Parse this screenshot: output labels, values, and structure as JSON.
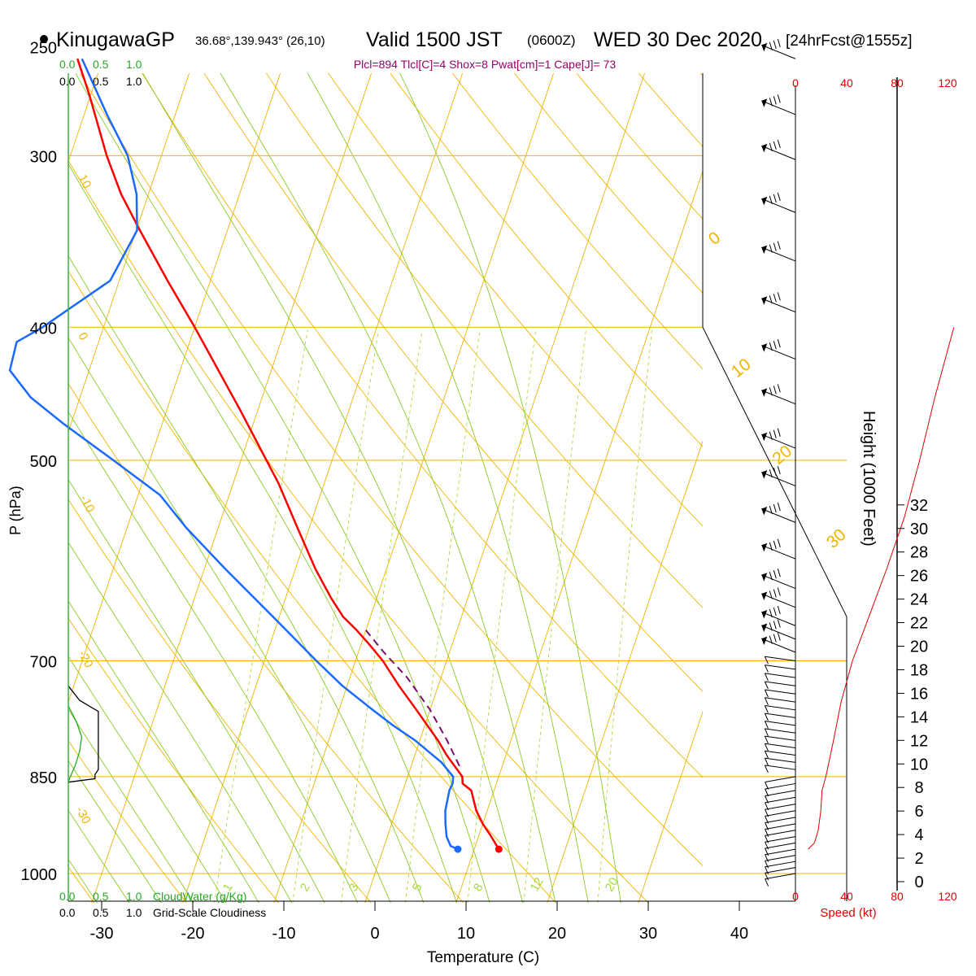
{
  "header": {
    "station_name": "KinugawaGP",
    "station_coords": "36.68°,139.943° (26,10)",
    "valid_main": "Valid 1500 JST",
    "valid_utc": "(0600Z)",
    "valid_date": "WED 30 Dec 2020",
    "forecast": "[24hrFcst@1555z]",
    "indices": "Plcl=894 Tlcl[C]=4 Shox=8 Pwat[cm]=1 Cape[J]= 73"
  },
  "chart_data": {
    "type": "line",
    "subtype": "skew-T log-P sounding",
    "xlabel": "Temperature (C)",
    "ylabel": "P (hPa)",
    "x_ticks": [
      -30,
      -20,
      -10,
      0,
      10,
      20,
      30,
      40
    ],
    "pressure_ticks": [
      250,
      300,
      400,
      500,
      700,
      850,
      1000
    ],
    "p_range": [
      250,
      1000
    ],
    "grid": true,
    "series": [
      {
        "id": "temperature",
        "color": "#ff0000",
        "points": [
          [
            960,
            12.7
          ],
          [
            940,
            11.4
          ],
          [
            920,
            10.0
          ],
          [
            900,
            8.8
          ],
          [
            870,
            7.5
          ],
          [
            860,
            6.3
          ],
          [
            850,
            6.0
          ],
          [
            820,
            3.5
          ],
          [
            800,
            2.0
          ],
          [
            760,
            -1.5
          ],
          [
            730,
            -4.3
          ],
          [
            700,
            -7.0
          ],
          [
            680,
            -9.2
          ],
          [
            665,
            -11.0
          ],
          [
            650,
            -13.0
          ],
          [
            630,
            -15.0
          ],
          [
            600,
            -17.8
          ],
          [
            560,
            -21.3
          ],
          [
            520,
            -25.0
          ],
          [
            500,
            -27.2
          ],
          [
            460,
            -31.9
          ],
          [
            430,
            -35.8
          ],
          [
            400,
            -40.0
          ],
          [
            370,
            -44.7
          ],
          [
            340,
            -49.6
          ],
          [
            320,
            -53.0
          ],
          [
            300,
            -56.0
          ],
          [
            270,
            -60.3
          ],
          [
            255,
            -62.8
          ]
        ]
      },
      {
        "id": "dewpoint",
        "color": "#1a6aff",
        "points": [
          [
            960,
            8.2
          ],
          [
            955,
            7.3
          ],
          [
            940,
            6.5
          ],
          [
            920,
            5.9
          ],
          [
            900,
            5.4
          ],
          [
            870,
            5.1
          ],
          [
            860,
            5.2
          ],
          [
            850,
            5.0
          ],
          [
            830,
            3.2
          ],
          [
            800,
            -0.5
          ],
          [
            780,
            -3.5
          ],
          [
            760,
            -6.3
          ],
          [
            730,
            -10.5
          ],
          [
            700,
            -14.3
          ],
          [
            650,
            -20.7
          ],
          [
            600,
            -27.7
          ],
          [
            560,
            -33.5
          ],
          [
            530,
            -37.6
          ],
          [
            500,
            -44.0
          ],
          [
            470,
            -50.9
          ],
          [
            450,
            -55.4
          ],
          [
            430,
            -58.7
          ],
          [
            410,
            -59.0
          ],
          [
            400,
            -56.7
          ],
          [
            370,
            -51.0
          ],
          [
            340,
            -49.9
          ],
          [
            320,
            -51.3
          ],
          [
            300,
            -53.7
          ],
          [
            280,
            -57.5
          ],
          [
            255,
            -62.3
          ]
        ]
      },
      {
        "id": "parcel",
        "color": "#7b0f70",
        "points": [
          [
            835,
            5.3
          ],
          [
            800,
            3.0
          ],
          [
            760,
            0.0
          ],
          [
            720,
            -3.7
          ],
          [
            690,
            -7.2
          ],
          [
            665,
            -10.0
          ]
        ]
      }
    ],
    "surface_markers": [
      {
        "id": "surface-temperature",
        "p": 960,
        "t": 12.7,
        "color": "#ff0000"
      },
      {
        "id": "surface-dewpoint",
        "p": 960,
        "t": 8.2,
        "color": "#1a6aff"
      }
    ],
    "isotherm_labels": [
      "10",
      "0",
      "-10",
      "-20",
      "-30"
    ],
    "theta_labels": [
      "0",
      "10",
      "20",
      "30"
    ],
    "mixing_ratio_labels": [
      "1",
      "2",
      "3",
      "5",
      "8",
      "12",
      "20"
    ],
    "cloud_panel": {
      "cloudwater_label": "CloudWater (g/Kg)",
      "cloudiness_label": "Grid-Scale Cloudiness",
      "cloudwater_ticks": [
        "0.0",
        "0.5",
        "1.0"
      ],
      "cloudiness_ticks": [
        "0.0",
        "0.5",
        "1.0"
      ],
      "cloudwater_color": "#22aa22",
      "cloudiness_profile": [
        [
          730,
          0.0
        ],
        [
          748,
          0.17
        ],
        [
          762,
          0.45
        ],
        [
          780,
          0.45
        ],
        [
          810,
          0.45
        ],
        [
          840,
          0.45
        ],
        [
          847,
          0.4
        ],
        [
          853,
          0.4
        ],
        [
          858,
          0.0
        ]
      ],
      "cloudwater_profile": [
        [
          755,
          0.0
        ],
        [
          775,
          0.12
        ],
        [
          795,
          0.2
        ],
        [
          815,
          0.17
        ],
        [
          835,
          0.1
        ],
        [
          850,
          0.03
        ],
        [
          858,
          0.0
        ]
      ]
    },
    "wind_panel": {
      "speed_label": "Speed (kt)",
      "speed_ticks": [
        "0",
        "40",
        "80",
        "120"
      ],
      "speed_color": "#e00000",
      "barb_pressures": [
        255,
        280,
        302,
        330,
        358,
        390,
        422,
        455,
        490,
        522,
        555,
        590,
        620,
        640,
        660,
        675,
        690,
        700,
        710,
        720,
        730,
        740,
        750,
        760,
        770,
        780,
        790,
        800,
        810,
        820,
        830,
        840,
        850,
        860,
        870,
        880,
        890,
        900,
        910,
        920,
        930,
        940,
        950,
        960,
        970,
        980,
        990,
        1000
      ],
      "speed_profile": [
        [
          960,
          10
        ],
        [
          950,
          15
        ],
        [
          930,
          18
        ],
        [
          900,
          20
        ],
        [
          870,
          21
        ],
        [
          850,
          24
        ],
        [
          800,
          30
        ],
        [
          750,
          36
        ],
        [
          700,
          45
        ],
        [
          650,
          58
        ],
        [
          600,
          72
        ],
        [
          550,
          86
        ],
        [
          500,
          98
        ],
        [
          450,
          110
        ],
        [
          400,
          125
        ]
      ]
    },
    "height_axis": {
      "label": "Height (1000 Feet)",
      "ticks": [
        "0",
        "2",
        "4",
        "6",
        "8",
        "10",
        "12",
        "14",
        "16",
        "18",
        "20",
        "22",
        "24",
        "26",
        "28",
        "30",
        "32"
      ]
    }
  }
}
